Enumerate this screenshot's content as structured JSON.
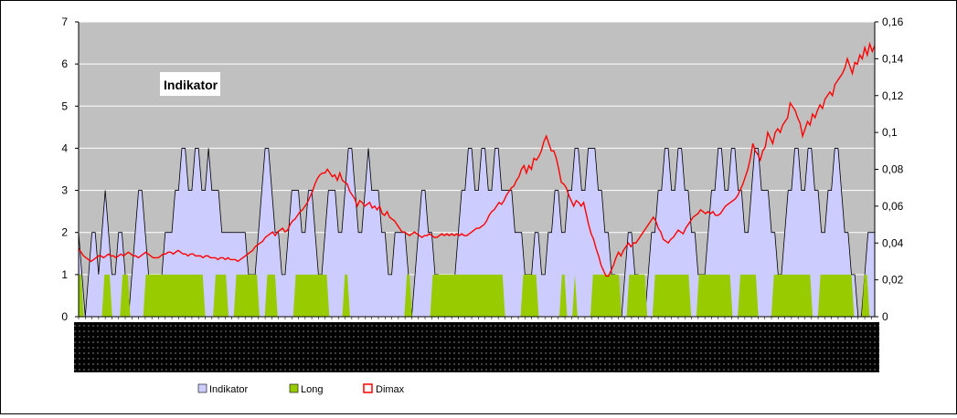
{
  "chart_data": {
    "type": "area",
    "title": "Indikator",
    "left_axis": {
      "ylim": [
        0,
        7
      ],
      "ticks": [
        "0",
        "1",
        "2",
        "3",
        "4",
        "5",
        "6",
        "7"
      ]
    },
    "right_axis": {
      "ylim": [
        0,
        0.16
      ],
      "ticks": [
        "0",
        "0,02",
        "0,04",
        "0,06",
        "0,08",
        "0,1",
        "0,12",
        "0,14",
        "0,16"
      ]
    },
    "grid": true,
    "legend_position": "bottom",
    "colors": {
      "plot_bg": "#c0c0c0",
      "indikator_fill": "#ccccff",
      "long_fill": "#99cc00",
      "dimax_line": "#ff0000"
    },
    "series": [
      {
        "name": "Indikator",
        "axis": "left",
        "kind": "area",
        "values": [
          2,
          1,
          0,
          1,
          2,
          2,
          1,
          2,
          3,
          2,
          1,
          1,
          2,
          2,
          1,
          0,
          1,
          2,
          3,
          3,
          2,
          1,
          0,
          0,
          0,
          1,
          2,
          2,
          2,
          3,
          3,
          4,
          4,
          3,
          3,
          4,
          4,
          3,
          3,
          4,
          3,
          3,
          3,
          2,
          2,
          2,
          2,
          2,
          2,
          2,
          2,
          1,
          1,
          1,
          2,
          3,
          4,
          4,
          3,
          2,
          2,
          1,
          1,
          2,
          3,
          3,
          3,
          2,
          2,
          3,
          3,
          2,
          1,
          1,
          2,
          3,
          3,
          3,
          2,
          2,
          3,
          4,
          4,
          3,
          2,
          2,
          3,
          4,
          3,
          3,
          3,
          2,
          2,
          1,
          1,
          2,
          2,
          2,
          2,
          1,
          0,
          1,
          2,
          3,
          3,
          2,
          2,
          1,
          1,
          0,
          0,
          0,
          0,
          1,
          2,
          3,
          3,
          4,
          4,
          3,
          3,
          4,
          4,
          3,
          3,
          4,
          4,
          3,
          3,
          3,
          3,
          2,
          2,
          2,
          1,
          1,
          1,
          2,
          2,
          1,
          1,
          2,
          2,
          3,
          3,
          2,
          2,
          3,
          3,
          4,
          4,
          3,
          3,
          4,
          4,
          4,
          3,
          3,
          2,
          2,
          1,
          1,
          0,
          0,
          1,
          2,
          2,
          1,
          1,
          0,
          0,
          1,
          2,
          2,
          3,
          3,
          4,
          4,
          3,
          3,
          4,
          4,
          3,
          3,
          2,
          2,
          1,
          1,
          1,
          2,
          3,
          3,
          4,
          4,
          3,
          3,
          4,
          4,
          3,
          3,
          2,
          2,
          3,
          4,
          4,
          3,
          3,
          3,
          2,
          2,
          1,
          1,
          2,
          3,
          3,
          4,
          4,
          3,
          3,
          4,
          4,
          3,
          3,
          2,
          2,
          3,
          3,
          4,
          4,
          3,
          2,
          2,
          1,
          1,
          0,
          0,
          1,
          2,
          2,
          2
        ]
      },
      {
        "name": "Long",
        "axis": "left",
        "kind": "area",
        "values": [
          1,
          1,
          0,
          0,
          0,
          0,
          0,
          0,
          0,
          0,
          1,
          1,
          1,
          0,
          0,
          0,
          0,
          1,
          1,
          1,
          0,
          0,
          0,
          0,
          0,
          0,
          1,
          1,
          1,
          1,
          1,
          1,
          1,
          1,
          1,
          1,
          1,
          1,
          1,
          1,
          1,
          1,
          1,
          1,
          1,
          1,
          1,
          1,
          1,
          0,
          0,
          0,
          0,
          1,
          1,
          1,
          1,
          1,
          0,
          0,
          0,
          1,
          1,
          1,
          1,
          1,
          1,
          1,
          1,
          1,
          0,
          0,
          0,
          1,
          1,
          1,
          1,
          0,
          0,
          0,
          0,
          0,
          0,
          0,
          1,
          1,
          1,
          1,
          1,
          1,
          1,
          1,
          1,
          1,
          1,
          1,
          1,
          0,
          0,
          0,
          0,
          0,
          0,
          1,
          1,
          0,
          0,
          0,
          0,
          0,
          0,
          0,
          0,
          0,
          0,
          0,
          0,
          0,
          0,
          0,
          0,
          0,
          0,
          0,
          0,
          0,
          0,
          1,
          1,
          0,
          0,
          0,
          0,
          0,
          0,
          0,
          0,
          1,
          1,
          1,
          1,
          1,
          1,
          1,
          1,
          1,
          1,
          1,
          1,
          1,
          1,
          1,
          1,
          1,
          1,
          1,
          1,
          1,
          1,
          1,
          1,
          1,
          1,
          1,
          1,
          0,
          0,
          0,
          0,
          0,
          0,
          0,
          1,
          1,
          1,
          1,
          1,
          1,
          0,
          0,
          0,
          0,
          0,
          0,
          0,
          0,
          0,
          1,
          1,
          0,
          0,
          0,
          1,
          0,
          0,
          0,
          0,
          0,
          0,
          1,
          1,
          1,
          1,
          1,
          1,
          1,
          1,
          1,
          1,
          1,
          0,
          0,
          0,
          1,
          1,
          1,
          1,
          1,
          1,
          1,
          0,
          0,
          0,
          1,
          1,
          1,
          1,
          1,
          1,
          1,
          1,
          1,
          1,
          1,
          1,
          1,
          1,
          0,
          0,
          0,
          1,
          1,
          1,
          1,
          1,
          1,
          1,
          1,
          1,
          1,
          1,
          1,
          1,
          0,
          0,
          0,
          1,
          1,
          1,
          1,
          1,
          1,
          1,
          0,
          0,
          0,
          0,
          0,
          0,
          1,
          1,
          1,
          1,
          1,
          1,
          1,
          1,
          1,
          1,
          1,
          1,
          1,
          1,
          1,
          0,
          0,
          0,
          1,
          1,
          1,
          1,
          1,
          1,
          1,
          1,
          1,
          1,
          1,
          1,
          1,
          0,
          0,
          0,
          0,
          1,
          1,
          0,
          0,
          0
        ]
      },
      {
        "name": "Dimax",
        "axis": "right",
        "kind": "line",
        "values": [
          0.037,
          0.035,
          0.033,
          0.032,
          0.031,
          0.03,
          0.031,
          0.032,
          0.033,
          0.033,
          0.032,
          0.033,
          0.034,
          0.033,
          0.033,
          0.032,
          0.033,
          0.034,
          0.033,
          0.034,
          0.035,
          0.034,
          0.033,
          0.033,
          0.032,
          0.033,
          0.034,
          0.035,
          0.034,
          0.033,
          0.032,
          0.032,
          0.032,
          0.033,
          0.034,
          0.034,
          0.035,
          0.035,
          0.034,
          0.035,
          0.036,
          0.035,
          0.034,
          0.034,
          0.033,
          0.034,
          0.034,
          0.033,
          0.033,
          0.033,
          0.032,
          0.033,
          0.033,
          0.032,
          0.032,
          0.032,
          0.031,
          0.032,
          0.032,
          0.031,
          0.032,
          0.031,
          0.031,
          0.031,
          0.03,
          0.031,
          0.032,
          0.033,
          0.034,
          0.035,
          0.036,
          0.038,
          0.039,
          0.04,
          0.041,
          0.043,
          0.044,
          0.045,
          0.046,
          0.044,
          0.046,
          0.047,
          0.048,
          0.046,
          0.047,
          0.05,
          0.052,
          0.053,
          0.055,
          0.057,
          0.058,
          0.06,
          0.062,
          0.065,
          0.068,
          0.072,
          0.075,
          0.077,
          0.078,
          0.078,
          0.08,
          0.078,
          0.076,
          0.077,
          0.074,
          0.078,
          0.074,
          0.073,
          0.072,
          0.068,
          0.066,
          0.064,
          0.06,
          0.063,
          0.062,
          0.06,
          0.061,
          0.062,
          0.059,
          0.06,
          0.058,
          0.06,
          0.056,
          0.055,
          0.057,
          0.054,
          0.053,
          0.052,
          0.05,
          0.048,
          0.046,
          0.046,
          0.045,
          0.044,
          0.045,
          0.046,
          0.045,
          0.044,
          0.043,
          0.044,
          0.044,
          0.045,
          0.044,
          0.043,
          0.043,
          0.044,
          0.045,
          0.044,
          0.045,
          0.044,
          0.045,
          0.044,
          0.045,
          0.044,
          0.045,
          0.044,
          0.044,
          0.045,
          0.046,
          0.047,
          0.048,
          0.048,
          0.049,
          0.05,
          0.052,
          0.055,
          0.057,
          0.058,
          0.06,
          0.062,
          0.061,
          0.063,
          0.066,
          0.068,
          0.07,
          0.071,
          0.074,
          0.076,
          0.08,
          0.082,
          0.078,
          0.082,
          0.08,
          0.086,
          0.085,
          0.087,
          0.09,
          0.095,
          0.098,
          0.094,
          0.09,
          0.09,
          0.086,
          0.08,
          0.073,
          0.072,
          0.07,
          0.066,
          0.063,
          0.06,
          0.063,
          0.062,
          0.06,
          0.062,
          0.056,
          0.05,
          0.045,
          0.042,
          0.037,
          0.033,
          0.028,
          0.025,
          0.022,
          0.022,
          0.025,
          0.028,
          0.032,
          0.035,
          0.033,
          0.036,
          0.038,
          0.04,
          0.038,
          0.04,
          0.04,
          0.042,
          0.044,
          0.046,
          0.048,
          0.05,
          0.052,
          0.054,
          0.052,
          0.048,
          0.046,
          0.042,
          0.041,
          0.04,
          0.042,
          0.043,
          0.045,
          0.047,
          0.046,
          0.045,
          0.048,
          0.05,
          0.052,
          0.054,
          0.055,
          0.056,
          0.058,
          0.057,
          0.056,
          0.057,
          0.056,
          0.057,
          0.055,
          0.055,
          0.056,
          0.058,
          0.06,
          0.061,
          0.062,
          0.063,
          0.064,
          0.066,
          0.069,
          0.072,
          0.076,
          0.08,
          0.086,
          0.094,
          0.09,
          0.088,
          0.085,
          0.09,
          0.092,
          0.1,
          0.097,
          0.094,
          0.1,
          0.102,
          0.1,
          0.104,
          0.106,
          0.108,
          0.116,
          0.114,
          0.112,
          0.108,
          0.105,
          0.098,
          0.102,
          0.106,
          0.104,
          0.11,
          0.108,
          0.112,
          0.115,
          0.113,
          0.118,
          0.12,
          0.122,
          0.12,
          0.126,
          0.128,
          0.13,
          0.132,
          0.135,
          0.14,
          0.136,
          0.132,
          0.138,
          0.137,
          0.142,
          0.14,
          0.146,
          0.142,
          0.148,
          0.144,
          0.147
        ]
      }
    ]
  }
}
